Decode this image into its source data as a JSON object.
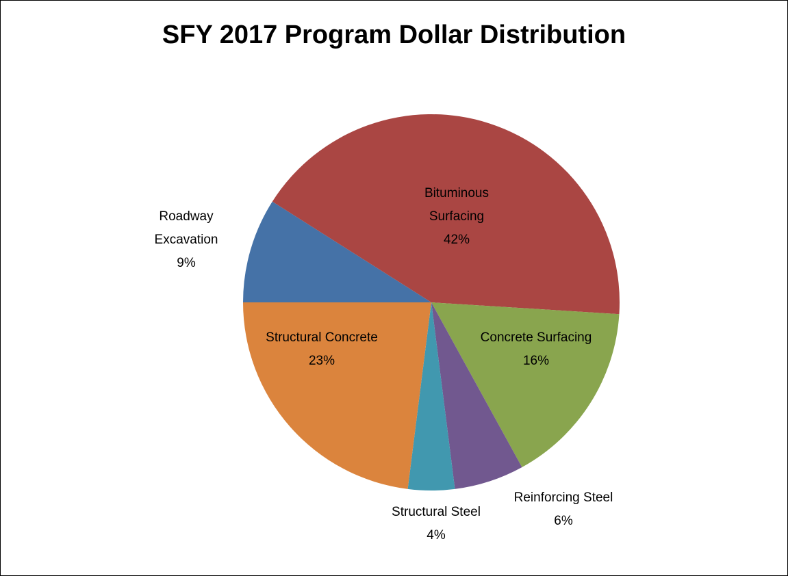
{
  "chart_data": {
    "type": "pie",
    "title": "SFY 2017 Program Dollar Distribution",
    "categories": [
      "Roadway Excavation",
      "Bituminous Surfacing",
      "Concrete Surfacing",
      "Reinforcing Steel",
      "Structural Steel",
      "Structural Concrete"
    ],
    "values": [
      9,
      42,
      16,
      6,
      4,
      23
    ],
    "value_labels": [
      "9%",
      "42%",
      "16%",
      "6%",
      "4%",
      "23%"
    ],
    "colors": [
      "#4572a7",
      "#aa4643",
      "#89a54e",
      "#71588f",
      "#4198af",
      "#db843d"
    ]
  }
}
